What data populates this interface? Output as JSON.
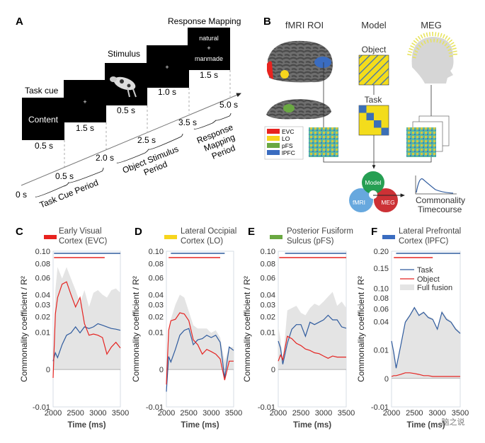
{
  "panel_a": {
    "letter": "A",
    "screens": [
      {
        "label": "Task cue",
        "content": "Content",
        "duration": "0.5 s"
      },
      {
        "label": "",
        "content": "+",
        "duration": "1.5 s"
      },
      {
        "label": "Stimulus",
        "content": "cow-image",
        "duration": "0.5 s"
      },
      {
        "label": "",
        "content": "+",
        "duration": "1.0 s"
      },
      {
        "label": "Response Mapping",
        "content_lines": [
          "natural",
          "+",
          "manmade"
        ],
        "duration": "1.5 s"
      }
    ],
    "timeline_ticks": [
      "0 s",
      "0.5 s",
      "2.0 s",
      "2.5 s",
      "3.5 s",
      "5.0 s"
    ],
    "periods": {
      "task_cue": "Task Cue Period",
      "object_stimulus": [
        "Object Stimulus",
        "Period"
      ],
      "response_mapping": [
        "Response",
        "Mapping",
        "Period"
      ]
    }
  },
  "panel_b": {
    "letter": "B",
    "columns": {
      "fmri": "fMRI ROI",
      "model": "Model",
      "meg": "MEG"
    },
    "model_labels": {
      "object": "Object",
      "task": "Task"
    },
    "roi_legend": [
      {
        "label": "EVC",
        "color": "#e8231f"
      },
      {
        "label": "LO",
        "color": "#f7d51d"
      },
      {
        "label": "pFS",
        "color": "#6aa842"
      },
      {
        "label": "lPFC",
        "color": "#3a6cc0"
      }
    ],
    "venn": {
      "model": "Model",
      "fmri": "fMRI",
      "meg": "MEG"
    },
    "output": [
      "Commonality",
      "Timecourse"
    ]
  },
  "legend": {
    "task": "Task",
    "object": "Object",
    "full": "Full fusion"
  },
  "colors": {
    "task": "#2f5b9e",
    "object": "#e52421",
    "full": "#e4e4e4"
  },
  "watermark": "脑之说",
  "chart_data": [
    {
      "type": "line",
      "letter": "C",
      "title": [
        "Early Visual",
        "Cortex (EVC)"
      ],
      "roi_color": "#e8231f",
      "xlabel": "Time (ms)",
      "ylabel": "Commonality coefficient / R²",
      "y_scale": "signed-sqrt",
      "xlim": [
        2000,
        3500
      ],
      "ylim": [
        -0.01,
        0.1
      ],
      "xticks": [
        "2000",
        "2500",
        "3000",
        "3500"
      ],
      "yticks": [
        0.1,
        0.08,
        0.06,
        0.04,
        0.03,
        0.02,
        0.01,
        0,
        -0.01
      ],
      "ytick_labels": [
        "0.10",
        "0.08",
        "0.06",
        "0.04",
        "0.03",
        "0.02",
        "0.01",
        "0",
        "-0.01"
      ],
      "x": [
        2000,
        2050,
        2100,
        2200,
        2300,
        2400,
        2500,
        2600,
        2700,
        2800,
        2900,
        3000,
        3100,
        3200,
        3300,
        3400,
        3500
      ],
      "series": {
        "full": [
          0.0005,
          0.045,
          0.075,
          0.059,
          0.075,
          0.059,
          0.045,
          0.032,
          0.045,
          0.028,
          0.042,
          0.045,
          0.04,
          0.037,
          0.045,
          0.047,
          0.042
        ],
        "task": [
          0.0005,
          0.002,
          0.001,
          0.0044,
          0.0084,
          0.0096,
          0.013,
          0.0096,
          0.013,
          0.012,
          0.013,
          0.015,
          0.014,
          0.013,
          0.012,
          0.0116,
          0.011
        ],
        "object": [
          -0.0005,
          0.022,
          0.037,
          0.052,
          0.055,
          0.04,
          0.028,
          0.037,
          0.015,
          0.0084,
          0.009,
          0.0084,
          0.0073,
          0.0017,
          0.0036,
          0.0053,
          0.0033
        ]
      },
      "significance": {
        "task": [
          2020,
          3500
        ],
        "object": [
          2020,
          3150
        ]
      }
    },
    {
      "type": "line",
      "letter": "D",
      "title": [
        "Lateral Occipial",
        "Cortex (LO)"
      ],
      "roi_color": "#f7d51d",
      "xlabel": "Time (ms)",
      "ylabel": "Commonality coefficient / R²",
      "y_scale": "signed-sqrt",
      "xlim": [
        2000,
        3500
      ],
      "ylim": [
        -0.01,
        0.1
      ],
      "xticks": [
        "2000",
        "2500",
        "3000",
        "3500"
      ],
      "yticks": [
        0.1,
        0.08,
        0.06,
        0.04,
        0.03,
        0.02,
        0.01,
        0,
        -0.01
      ],
      "ytick_labels": [
        "0.10",
        "0.08",
        "0.06",
        "0.04",
        "0.03",
        "0.02",
        "0.01",
        "0",
        "-0.01"
      ],
      "x": [
        2000,
        2050,
        2100,
        2200,
        2300,
        2400,
        2500,
        2600,
        2700,
        2800,
        2900,
        3000,
        3100,
        3200,
        3300,
        3400,
        3500
      ],
      "series": {
        "full": [
          -0.0016,
          0.011,
          0.018,
          0.03,
          0.04,
          0.037,
          0.024,
          0.014,
          0.012,
          0.012,
          0.012,
          0.0096,
          0.011,
          0.0073,
          0.0005,
          0.0036,
          0.0036
        ],
        "task": [
          -0.0035,
          0.0012,
          0.0004,
          0.0029,
          0.0084,
          0.011,
          0.012,
          0.0044,
          0.0063,
          0.0068,
          0.0084,
          0.0073,
          0.0084,
          0.0053,
          -0.0005,
          0.0036,
          0.0026
        ],
        "object": [
          -0.0016,
          0.011,
          0.017,
          0.018,
          0.023,
          0.022,
          0.017,
          0.0063,
          0.0044,
          0.0017,
          0.0029,
          0.0023,
          0.0017,
          0.0008,
          -0.0008,
          0.0005,
          0.0005
        ]
      },
      "significance": {
        "task": [
          2100,
          3300
        ],
        "object": [
          2050,
          3200
        ]
      }
    },
    {
      "type": "line",
      "letter": "E",
      "title": [
        "Posterior Fusiform",
        "Sulcus (pFS)"
      ],
      "roi_color": "#6aa842",
      "xlabel": "Time (ms)",
      "ylabel": "Commonality coefficient / R²",
      "y_scale": "signed-sqrt",
      "xlim": [
        2000,
        3500
      ],
      "ylim": [
        -0.01,
        0.1
      ],
      "xticks": [
        "2000",
        "2500",
        "3000",
        "3500"
      ],
      "yticks": [
        0.1,
        0.08,
        0.06,
        0.04,
        0.03,
        0.02,
        0.01,
        0,
        -0.01
      ],
      "ytick_labels": [
        "0.10",
        "0.08",
        "0.06",
        "0.04",
        "0.03",
        "0.02",
        "0.01",
        "0",
        "-0.01"
      ],
      "x": [
        2000,
        2050,
        2100,
        2200,
        2300,
        2400,
        2500,
        2600,
        2700,
        2800,
        2900,
        3000,
        3100,
        3200,
        3300,
        3400,
        3500
      ],
      "series": {
        "full": [
          0.013,
          0.0068,
          0.0004,
          0.025,
          0.027,
          0.029,
          0.023,
          0.021,
          0.027,
          0.031,
          0.029,
          0.033,
          0.038,
          0.043,
          0.029,
          0.033,
          0.027
        ],
        "task": [
          0.0058,
          0.0033,
          0.0002,
          0.0049,
          0.0116,
          0.0144,
          0.0144,
          0.0079,
          0.016,
          0.0144,
          0.016,
          0.0176,
          0.021,
          0.0176,
          0.0176,
          0.013,
          0.0122
        ],
        "object": [
          0.0005,
          0.0015,
          0.0007,
          0.0079,
          0.0068,
          0.0049,
          0.0041,
          0.003,
          0.0026,
          0.002,
          0.0018,
          0.0013,
          0.0009,
          0.0013,
          0.0011,
          0.0011,
          0.0011
        ]
      },
      "significance": {
        "task": [
          2150,
          3500
        ],
        "object": [
          2020,
          3500
        ]
      }
    },
    {
      "type": "line",
      "letter": "F",
      "title": [
        "Lateral Prefrontal",
        "Cortex (lPFC)"
      ],
      "roi_color": "#3a6cc0",
      "xlabel": "Time (ms)",
      "ylabel": "Commonality coefficient / R²",
      "y_scale": "signed-sqrt",
      "xlim": [
        2000,
        3500
      ],
      "ylim": [
        -0.01,
        0.2
      ],
      "xticks": [
        "2000",
        "2500",
        "3000",
        "3500"
      ],
      "yticks": [
        0.2,
        0.15,
        0.1,
        0.08,
        0.06,
        0.04,
        0.01,
        0,
        -0.01
      ],
      "ytick_labels": [
        "0.20",
        "0.15",
        "0.10",
        "0.08",
        "0.06",
        "0.04",
        "0.01",
        "0",
        "-0.01"
      ],
      "x": [
        2000,
        2050,
        2100,
        2200,
        2300,
        2400,
        2500,
        2600,
        2700,
        2800,
        2900,
        3000,
        3100,
        3200,
        3300,
        3400,
        3500
      ],
      "series": {
        "full": [
          0.0196,
          0.0095,
          0.0016,
          0.014,
          0.041,
          0.051,
          0.064,
          0.051,
          0.056,
          0.048,
          0.045,
          0.032,
          0.057,
          0.046,
          0.041,
          0.032,
          0.027
        ],
        "task": [
          0.0173,
          0.0081,
          0.0013,
          0.0132,
          0.039,
          0.049,
          0.062,
          0.049,
          0.054,
          0.046,
          0.043,
          0.03,
          0.054,
          0.043,
          0.039,
          0.03,
          0.025
        ],
        "object": [
          5e-05,
          0.0001,
          0.0001,
          0.0002,
          0.0004,
          0.0004,
          0.0003,
          0.0002,
          0.0001,
          0.0001,
          5e-05,
          5e-05,
          5e-05,
          5e-05,
          5e-05,
          5e-05,
          5e-05
        ]
      },
      "significance": {
        "task": [
          2100,
          3500
        ],
        "object": [
          2050,
          2900
        ]
      },
      "show_legend": true,
      "legend_position": "top-left"
    }
  ]
}
